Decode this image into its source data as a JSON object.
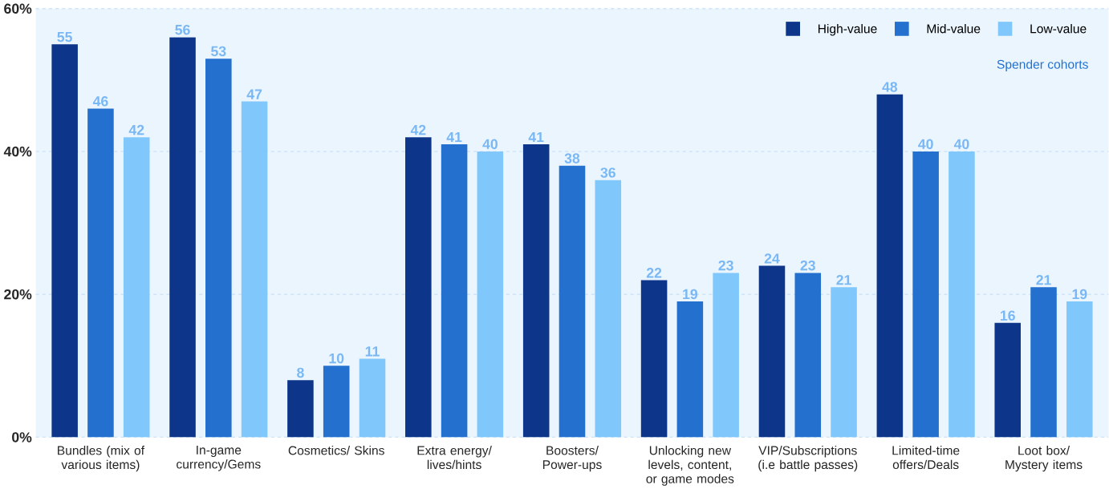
{
  "chart_data": {
    "type": "bar",
    "categories": [
      "Bundles (mix of various items)",
      "In-game currency/Gems",
      "Cosmetics/ Skins",
      "Extra energy/ lives/hints",
      "Boosters/ Power-ups",
      "Unlocking new levels, content, or game modes",
      "VIP/Subscriptions (i.e battle passes)",
      "Limited-time offers/Deals",
      "Loot box/ Mystery items"
    ],
    "series": [
      {
        "name": "High-value",
        "color": "#0d3589",
        "values": [
          55,
          56,
          8,
          42,
          41,
          22,
          24,
          48,
          16
        ]
      },
      {
        "name": "Mid-value",
        "color": "#2370cf",
        "values": [
          46,
          53,
          10,
          41,
          38,
          19,
          23,
          40,
          21
        ]
      },
      {
        "name": "Low-value",
        "color": "#80c8fb",
        "values": [
          42,
          47,
          11,
          40,
          36,
          23,
          21,
          40,
          19
        ]
      }
    ],
    "legend_title": "Spender cohorts",
    "ylim": [
      0,
      60
    ],
    "yticks": [
      {
        "value": 0,
        "label": "0%"
      },
      {
        "value": 20,
        "label": "20%"
      },
      {
        "value": 40,
        "label": "40%"
      },
      {
        "value": 60,
        "label": "60%"
      }
    ],
    "grid": "y",
    "legend": "top right",
    "data_labels": true
  }
}
